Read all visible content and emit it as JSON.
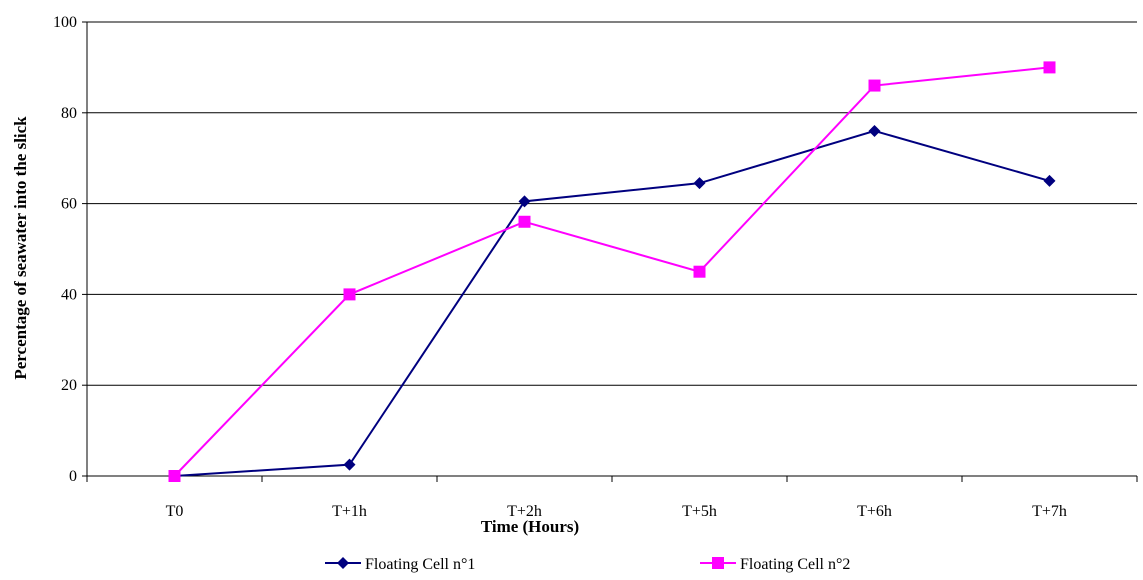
{
  "chart_data": {
    "type": "line",
    "title": "",
    "xlabel": "Time (Hours)",
    "ylabel": "Percentage of seawater into the slick",
    "categories": [
      "T0",
      "T+1h",
      "T+2h",
      "T+5h",
      "T+6h",
      "T+7h"
    ],
    "ylim": [
      0,
      100
    ],
    "yticks": [
      0,
      20,
      40,
      60,
      80,
      100
    ],
    "grid": "horizontal",
    "legend_position": "bottom",
    "series": [
      {
        "name": "Floating Cell n°1",
        "values": [
          0,
          2.5,
          60.5,
          64.5,
          76,
          65
        ],
        "color": "#00007F",
        "marker": "diamond"
      },
      {
        "name": "Floating Cell n°2",
        "values": [
          0,
          40,
          56,
          45,
          86,
          90
        ],
        "color": "#FF00FF",
        "marker": "square"
      }
    ]
  }
}
